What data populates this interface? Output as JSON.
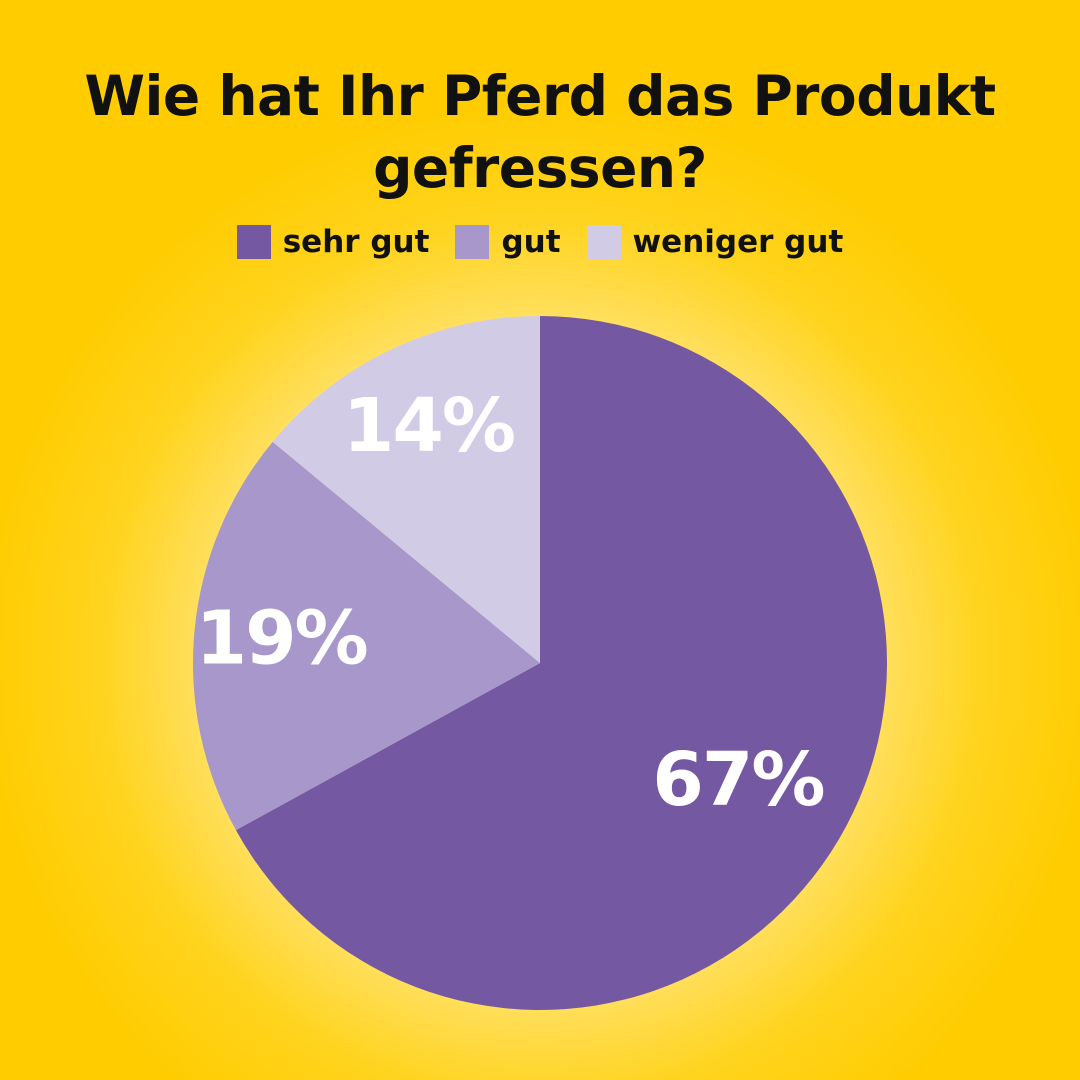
{
  "chart_data": {
    "type": "pie",
    "title": "Wie hat Ihr Pferd das Produkt gefressen?",
    "legend_position": "top",
    "categories": [
      "sehr gut",
      "gut",
      "weniger gut"
    ],
    "values": [
      67,
      19,
      14
    ],
    "labels": [
      "67%",
      "19%",
      "14%"
    ],
    "colors": [
      "#7558a2",
      "#a897ca",
      "#d2cbe5"
    ],
    "start": "12 o'clock, clockwise"
  },
  "style": {
    "background": "#ffcc00",
    "title_color": "#111111",
    "label_color": "#ffffff"
  }
}
